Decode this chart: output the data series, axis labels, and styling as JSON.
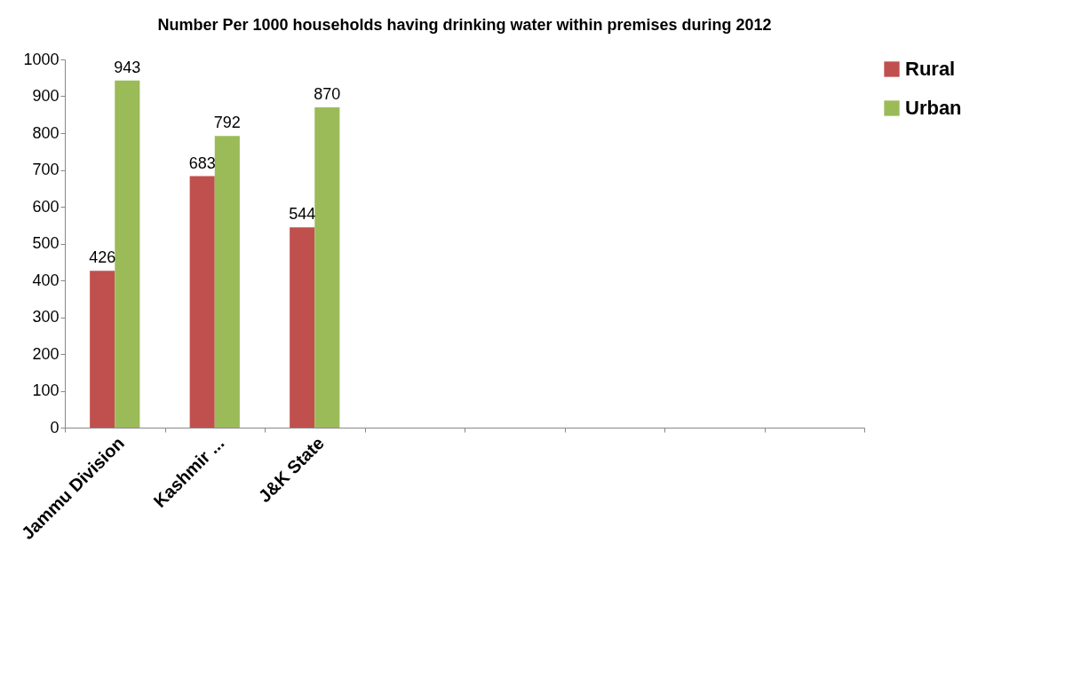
{
  "chart_data": {
    "type": "bar",
    "title": "Number Per 1000 households having drinking water within premises during 2012",
    "categories": [
      "Jammu Division",
      "Kashmir ...",
      "J&K State",
      null,
      null,
      null,
      null,
      null
    ],
    "series": [
      {
        "name": "Rural",
        "color": "#c0504d",
        "values": [
          426,
          683,
          544,
          null,
          null,
          null,
          null,
          null
        ]
      },
      {
        "name": "Urban",
        "color": "#9bbb59",
        "values": [
          943,
          792,
          870,
          null,
          null,
          null,
          null,
          null
        ]
      }
    ],
    "ylim": [
      0,
      1000
    ],
    "yticks": [
      0,
      100,
      200,
      300,
      400,
      500,
      600,
      700,
      800,
      900,
      1000
    ],
    "grid": false,
    "legend": "right",
    "data_labels": true
  }
}
